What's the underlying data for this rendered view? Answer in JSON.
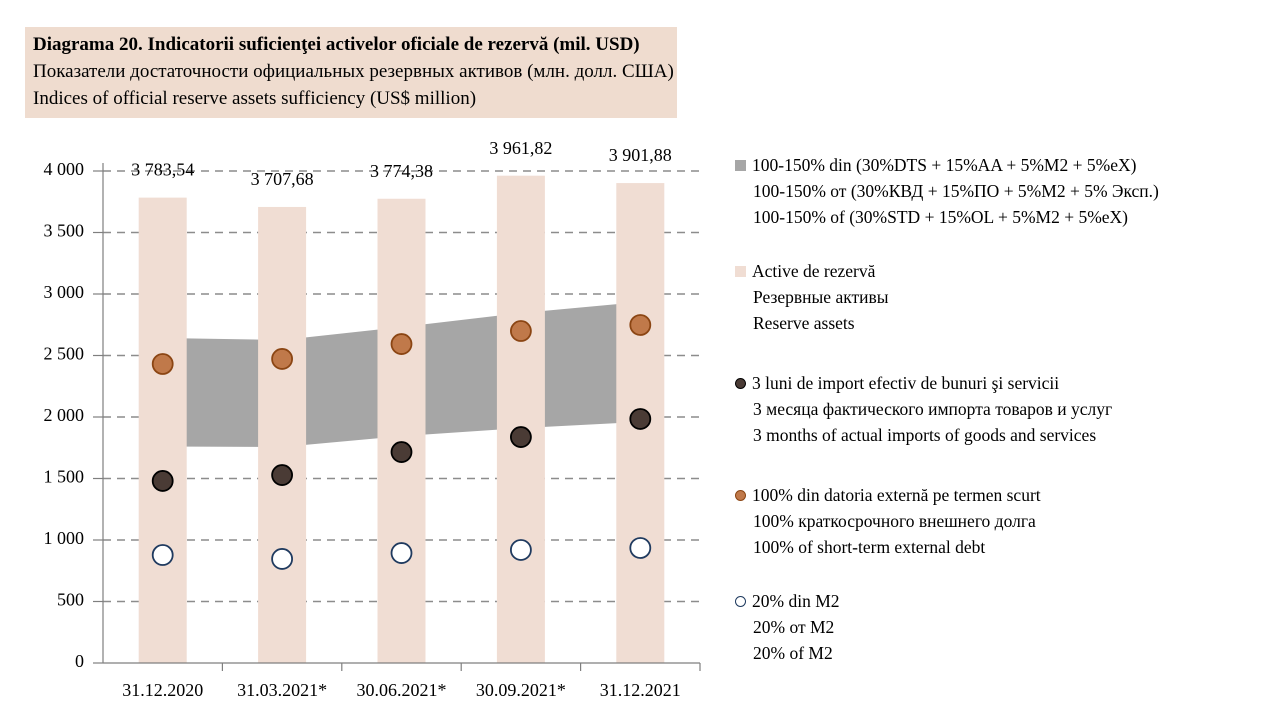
{
  "chart_data": {
    "type": "combo",
    "title": "Diagrama 20. Indicatorii suficienţei activelor oficiale de rezervă (mil. USD)",
    "subtitle": [
      "Показатели достаточности официальных резервных активов (млн. долл. США)",
      "Indices of official reserve assets sufficiency (US$ million)"
    ],
    "categories": [
      "31.12.2020",
      "31.03.2021*",
      "30.06.2021*",
      "30.09.2021*",
      "31.12.2021"
    ],
    "ylim": [
      0,
      4000
    ],
    "yticks": [
      0,
      500,
      {
        "value": 1000,
        "label": "1 000"
      },
      {
        "value": 1500,
        "label": "1 500"
      },
      {
        "value": 2000,
        "label": "2 000"
      },
      {
        "value": 2500,
        "label": "2 500"
      },
      {
        "value": 3000,
        "label": "3 000"
      },
      {
        "value": 3500,
        "label": "3 500"
      },
      {
        "value": 4000,
        "label": "4 000"
      }
    ],
    "grid": true,
    "series": [
      {
        "type": "area",
        "name": [
          "100-150% din (30%DTS + 15%AA + 5%M2 + 5%eX)",
          "100-150% от (30%КВД  + 15%ПО + 5%М2 + 5% Эксп.)",
          "100-150% of (30%STD + 15%OL + 5%M2 + 5%eX)"
        ],
        "color": "#a6a6a6",
        "low": [
          1760,
          1756,
          1845,
          1910,
          1960
        ],
        "high": [
          2642,
          2626,
          2732,
          2846,
          2935
        ]
      },
      {
        "type": "bar",
        "name": [
          "Active de rezervă",
          "Резервные активы",
          "Reserve assets"
        ],
        "color": "#f0ddd3",
        "values": [
          3783.54,
          3707.68,
          3774.38,
          3961.82,
          3901.88
        ],
        "value_labels": [
          "3 783,54",
          "3 707,68",
          "3 774,38",
          "3 961,82",
          "3 901,88"
        ]
      },
      {
        "type": "scatter",
        "name": [
          "3 luni de import efectiv de bunuri şi servicii",
          "3 месяца фактического импорта товаров и услуг",
          "3 months of actual imports of goods and services"
        ],
        "color": "#4a3b35",
        "edge": "#000000",
        "values": [
          1480,
          1528,
          1715,
          1837,
          1984
        ]
      },
      {
        "type": "scatter",
        "name": [
          "100% din datoria externă pe termen scurt",
          "100% краткосрочного внешнего долга",
          "100% of short-term external debt"
        ],
        "color": "#c0794a",
        "edge": "#8b4513",
        "values": [
          2431,
          2472,
          2593,
          2699,
          2748
        ]
      },
      {
        "type": "scatter",
        "name": [
          "20% din M2",
          "20% от М2",
          "20% of M2"
        ],
        "color": "#ffffff",
        "edge": "#1f3a5f",
        "values": [
          878,
          846,
          894,
          919,
          935
        ]
      }
    ]
  }
}
